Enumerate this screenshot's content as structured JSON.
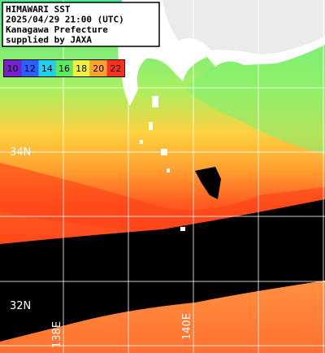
{
  "header": {
    "lines": [
      "HIMAWARI SST",
      "2025/04/29 21:00 (UTC)",
      "Kanagawa Prefecture",
      "supplied by JAXA"
    ]
  },
  "legend": {
    "values": [
      10,
      12,
      14,
      16,
      18,
      20,
      22
    ],
    "colors": [
      "#7a1fd0",
      "#2d5cff",
      "#20d0f0",
      "#5ee860",
      "#f0f040",
      "#ffa030",
      "#ff3020"
    ]
  },
  "grid_labels": {
    "latitudes": [
      "34N",
      "32N"
    ],
    "longitudes": [
      "138E",
      "140E"
    ]
  }
}
